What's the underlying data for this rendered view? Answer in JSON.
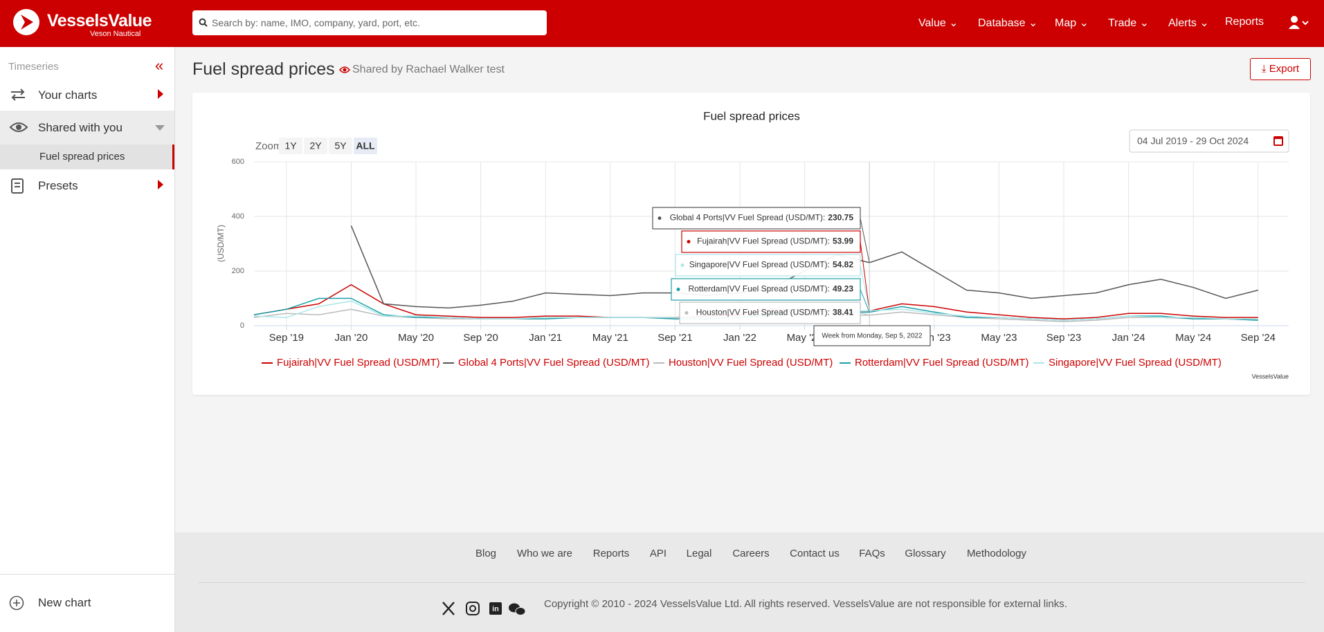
{
  "header": {
    "logo": "VesselsValue",
    "logo_sub": "Veson Nautical",
    "search_placeholder": "Search by: name, IMO, company, yard, port, etc.",
    "nav": [
      "Value",
      "Database",
      "Map",
      "Trade",
      "Alerts",
      "Reports"
    ]
  },
  "sidebar": {
    "section": "Timeseries",
    "items": [
      "Your charts",
      "Shared with you",
      "Fuel spread prices",
      "Presets"
    ],
    "new_chart": "New chart"
  },
  "page": {
    "title": "Fuel spread prices",
    "shared_by": "Shared by Rachael Walker test",
    "export": "Export"
  },
  "chart_data": {
    "type": "line",
    "title": "Fuel spread prices",
    "y_label": "(USD/MT)",
    "zoom_label": "Zoom",
    "zoom_buttons": [
      "1Y",
      "2Y",
      "5Y",
      "ALL"
    ],
    "date_range": "04 Jul 2019 - 29 Oct 2024",
    "credit": "VesselsValue",
    "x": [
      "Jul '19",
      "Sep '19",
      "Nov '19",
      "Jan '20",
      "Mar '20",
      "May '20",
      "Jul '20",
      "Sep '20",
      "Nov '20",
      "Jan '21",
      "Mar '21",
      "May '21",
      "Jul '21",
      "Sep '21",
      "Nov '21",
      "Jan '22",
      "Mar '22",
      "May '22",
      "Jul '22",
      "Sep '22",
      "Nov '22",
      "Jan '23",
      "Mar '23",
      "May '23",
      "Jul '23",
      "Sep '23",
      "Nov '23",
      "Jan '24",
      "Mar '24",
      "May '24",
      "Jul '24",
      "Sep '24"
    ],
    "xticks": [
      "Sep '19",
      "Jan '20",
      "May '20",
      "Sep '20",
      "Jan '21",
      "May '21",
      "Sep '21",
      "Jan '22",
      "May '22",
      "Sep '22",
      "Jan '23",
      "May '23",
      "Sep '23",
      "Jan '24",
      "May '24",
      "Sep '24"
    ],
    "ylim": [
      0,
      600
    ],
    "yticks": [
      0,
      200,
      400,
      600
    ],
    "grid": true,
    "series": [
      {
        "name": "Fujairah|VV Fuel Spread (USD/MT)",
        "color": "#cc0000",
        "values": [
          40,
          60,
          80,
          150,
          80,
          40,
          35,
          30,
          30,
          35,
          35,
          30,
          30,
          30,
          35,
          40,
          60,
          55,
          50,
          53.99,
          80,
          70,
          50,
          40,
          30,
          25,
          30,
          45,
          45,
          35,
          30,
          30
        ]
      },
      {
        "name": "Global 4 Ports|VV Fuel Spread (USD/MT)",
        "color": "#555555",
        "values": [
          null,
          null,
          null,
          366,
          80,
          70,
          65,
          75,
          90,
          120,
          115,
          110,
          120,
          120,
          111,
          120,
          140,
          200,
          260,
          230.75,
          270,
          200,
          130,
          120,
          100,
          110,
          120,
          150,
          170,
          140,
          100,
          130
        ]
      },
      {
        "name": "Houston|VV Fuel Spread (USD/MT)",
        "color": "#bbbbbb",
        "values": [
          30,
          45,
          40,
          60,
          35,
          30,
          25,
          25,
          25,
          25,
          30,
          30,
          30,
          25,
          25,
          30,
          35,
          45,
          40,
          38.41,
          50,
          40,
          30,
          25,
          20,
          15,
          20,
          30,
          30,
          25,
          25,
          20
        ]
      },
      {
        "name": "Rotterdam|VV Fuel Spread (USD/MT)",
        "color": "#1a9fa8",
        "values": [
          40,
          60,
          100,
          100,
          40,
          30,
          30,
          25,
          25,
          25,
          30,
          30,
          30,
          25,
          25,
          30,
          40,
          60,
          50,
          49.23,
          70,
          50,
          30,
          30,
          25,
          20,
          25,
          35,
          35,
          25,
          25,
          20
        ]
      },
      {
        "name": "Singapore|VV Fuel Spread (USD/MT)",
        "color": "#aee6e8",
        "values": [
          35,
          30,
          70,
          90,
          35,
          35,
          30,
          25,
          25,
          30,
          30,
          30,
          30,
          30,
          30,
          35,
          45,
          60,
          50,
          54.82,
          60,
          45,
          35,
          30,
          25,
          20,
          25,
          35,
          30,
          30,
          25,
          25
        ]
      }
    ],
    "tooltip": {
      "title": "Week from Monday, Sep 5, 2022",
      "items": [
        {
          "label": "Global 4 Ports|VV Fuel Spread (USD/MT):",
          "value": 230.75
        },
        {
          "label": "Fujairah|VV Fuel Spread (USD/MT):",
          "value": 53.99
        },
        {
          "label": "Singapore|VV Fuel Spread (USD/MT):",
          "value": 54.82
        },
        {
          "label": "Rotterdam|VV Fuel Spread (USD/MT):",
          "value": 49.23
        },
        {
          "label": "Houston|VV Fuel Spread (USD/MT):",
          "value": 38.41
        }
      ]
    }
  },
  "footer": {
    "links": [
      "Blog",
      "Who we are",
      "Reports",
      "API",
      "Legal",
      "Careers",
      "Contact us",
      "FAQs",
      "Glossary",
      "Methodology"
    ],
    "copyright": "Copyright © 2010 - 2024 VesselsValue Ltd. All rights reserved. VesselsValue are not responsible for external links."
  }
}
